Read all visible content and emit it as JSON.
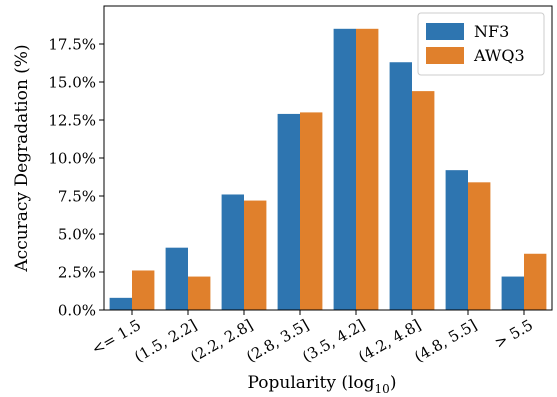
{
  "chart_data": {
    "type": "bar",
    "title": "",
    "xlabel": "Popularity (log",
    "xlabel_subscript": "10",
    "xlabel_suffix": ")",
    "ylabel": "Accuracy Degradation (%)",
    "ylim": [
      0,
      20.0
    ],
    "y_ticks": [
      0,
      2.5,
      5,
      7.5,
      10,
      12.5,
      15,
      17.5
    ],
    "y_tick_labels": [
      "0.0%",
      "2.5%",
      "5.0%",
      "7.5%",
      "10.0%",
      "12.5%",
      "15.0%",
      "17.5%"
    ],
    "categories": [
      "<= 1.5",
      "(1.5, 2.2]",
      "(2.2, 2.8]",
      "(2.8, 3.5]",
      "(3.5, 4.2]",
      "(4.2, 4.8]",
      "(4.8, 5.5]",
      "> 5.5"
    ],
    "series": [
      {
        "name": "NF3",
        "color": "#2e75b0",
        "values": [
          0.8,
          4.1,
          7.6,
          12.9,
          18.5,
          16.3,
          9.2,
          2.2
        ]
      },
      {
        "name": "AWQ3",
        "color": "#e0802c",
        "values": [
          2.6,
          2.2,
          7.2,
          13.0,
          18.5,
          14.4,
          8.4,
          3.7
        ]
      }
    ],
    "legend_position": "top-right",
    "grid": false
  }
}
